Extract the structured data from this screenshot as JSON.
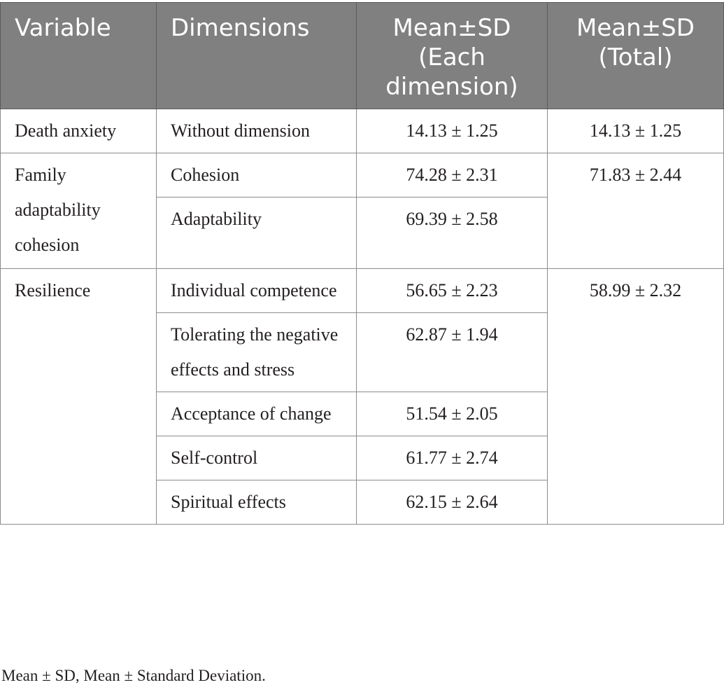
{
  "table": {
    "headers": [
      "Variable",
      "Dimensions",
      "Mean±SD (Each dimension)",
      "Mean±SD (Total)"
    ],
    "rows": [
      {
        "variable": "Death anxiety",
        "total": "14.13 ± 1.25",
        "dimensions": [
          {
            "name": "Without dimension",
            "mean_sd": "14.13 ± 1.25"
          }
        ]
      },
      {
        "variable": "Family adaptability cohesion",
        "total": "71.83 ± 2.44",
        "dimensions": [
          {
            "name": "Cohesion",
            "mean_sd": "74.28 ± 2.31"
          },
          {
            "name": "Adaptability",
            "mean_sd": "69.39 ± 2.58"
          }
        ]
      },
      {
        "variable": "Resilience",
        "total": "58.99 ± 2.32",
        "dimensions": [
          {
            "name": "Individual competence",
            "mean_sd": "56.65 ± 2.23"
          },
          {
            "name": "Tolerating the negative effects and stress",
            "mean_sd": "62.87 ± 1.94"
          },
          {
            "name": "Acceptance of change",
            "mean_sd": "51.54 ± 2.05"
          },
          {
            "name": "Self-control",
            "mean_sd": "61.77 ± 2.74"
          },
          {
            "name": "Spiritual effects",
            "mean_sd": "62.15 ± 2.64"
          }
        ]
      }
    ]
  },
  "footnote": "Mean ± SD, Mean ± Standard Deviation."
}
